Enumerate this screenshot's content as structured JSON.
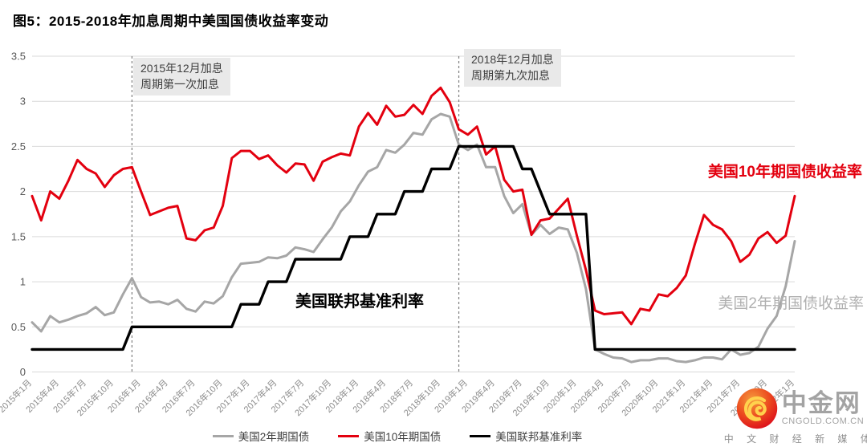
{
  "title": "图5：2015-2018年加息周期中美国国债收益率变动",
  "watermark": {
    "brand": "中金网",
    "domain": "CNGOLD.COM.CN",
    "tagline": "中文财经新媒体"
  },
  "chart_data": {
    "type": "line",
    "title": "图5：2015-2018年加息周期中美国国债收益率变动",
    "ylim": [
      0,
      3.5
    ],
    "y_ticks": [
      "0",
      "0.5",
      "1",
      "1.5",
      "2",
      "2.5",
      "3",
      "3.5"
    ],
    "grid": true,
    "months_per_tick": 3,
    "x_tick_labels": [
      "2015年1月",
      "2015年4月",
      "2015年7月",
      "2015年10月",
      "2016年1月",
      "2016年4月",
      "2016年7月",
      "2016年10月",
      "2017年1月",
      "2017年4月",
      "2017年7月",
      "2017年10月",
      "2018年1月",
      "2018年4月",
      "2018年7月",
      "2018年10月",
      "2019年1月",
      "2019年4月",
      "2019年7月",
      "2019年10月",
      "2020年1月",
      "2020年4月",
      "2020年7月",
      "2020年10月",
      "2021年1月",
      "2021年4月",
      "2021年7月",
      "2021年10月",
      "2022年1月"
    ],
    "series": [
      {
        "key": "us-2y-treasury",
        "name": "美国2年期国债",
        "color": "#a6a6a6",
        "width": 3,
        "values": [
          0.55,
          0.45,
          0.62,
          0.55,
          0.58,
          0.62,
          0.65,
          0.72,
          0.63,
          0.66,
          0.86,
          1.04,
          0.83,
          0.77,
          0.78,
          0.75,
          0.8,
          0.7,
          0.67,
          0.78,
          0.76,
          0.84,
          1.05,
          1.2,
          1.21,
          1.22,
          1.27,
          1.26,
          1.29,
          1.38,
          1.36,
          1.33,
          1.47,
          1.6,
          1.78,
          1.89,
          2.07,
          2.22,
          2.27,
          2.46,
          2.43,
          2.52,
          2.65,
          2.63,
          2.8,
          2.86,
          2.83,
          2.52,
          2.46,
          2.52,
          2.27,
          2.27,
          1.95,
          1.76,
          1.86,
          1.52,
          1.63,
          1.53,
          1.6,
          1.58,
          1.32,
          0.92,
          0.25,
          0.2,
          0.16,
          0.15,
          0.11,
          0.13,
          0.13,
          0.15,
          0.15,
          0.12,
          0.11,
          0.13,
          0.16,
          0.16,
          0.14,
          0.25,
          0.19,
          0.21,
          0.28,
          0.48,
          0.62,
          0.95,
          1.45
        ]
      },
      {
        "key": "us-10y-treasury",
        "name": "美国10年期国债",
        "color": "#e3000f",
        "width": 3,
        "values": [
          1.95,
          1.68,
          2.0,
          1.92,
          2.12,
          2.35,
          2.25,
          2.2,
          2.05,
          2.18,
          2.25,
          2.27,
          2.0,
          1.74,
          1.78,
          1.82,
          1.84,
          1.48,
          1.46,
          1.57,
          1.6,
          1.84,
          2.37,
          2.45,
          2.45,
          2.36,
          2.4,
          2.29,
          2.21,
          2.31,
          2.3,
          2.12,
          2.33,
          2.38,
          2.42,
          2.4,
          2.72,
          2.87,
          2.74,
          2.95,
          2.83,
          2.85,
          2.96,
          2.86,
          3.06,
          3.15,
          2.99,
          2.69,
          2.63,
          2.72,
          2.41,
          2.5,
          2.13,
          2.0,
          2.02,
          1.52,
          1.68,
          1.7,
          1.81,
          1.92,
          1.51,
          1.13,
          0.68,
          0.64,
          0.65,
          0.66,
          0.53,
          0.7,
          0.68,
          0.86,
          0.84,
          0.93,
          1.07,
          1.42,
          1.74,
          1.63,
          1.58,
          1.45,
          1.22,
          1.3,
          1.48,
          1.55,
          1.43,
          1.51,
          1.95
        ]
      },
      {
        "key": "us-fed-funds-rate",
        "name": "美国联邦基准利率",
        "color": "#000000",
        "width": 3.4,
        "values": [
          0.25,
          0.25,
          0.25,
          0.25,
          0.25,
          0.25,
          0.25,
          0.25,
          0.25,
          0.25,
          0.25,
          0.5,
          0.5,
          0.5,
          0.5,
          0.5,
          0.5,
          0.5,
          0.5,
          0.5,
          0.5,
          0.5,
          0.5,
          0.75,
          0.75,
          0.75,
          1.0,
          1.0,
          1.0,
          1.25,
          1.25,
          1.25,
          1.25,
          1.25,
          1.25,
          1.5,
          1.5,
          1.5,
          1.75,
          1.75,
          1.75,
          2.0,
          2.0,
          2.0,
          2.25,
          2.25,
          2.25,
          2.5,
          2.5,
          2.5,
          2.5,
          2.5,
          2.5,
          2.5,
          2.25,
          2.25,
          2.0,
          1.75,
          1.75,
          1.75,
          1.75,
          1.75,
          0.25,
          0.25,
          0.25,
          0.25,
          0.25,
          0.25,
          0.25,
          0.25,
          0.25,
          0.25,
          0.25,
          0.25,
          0.25,
          0.25,
          0.25,
          0.25,
          0.25,
          0.25,
          0.25,
          0.25,
          0.25,
          0.25,
          0.25
        ]
      }
    ],
    "annotations": [
      {
        "line1": "2015年12月加息",
        "line2": "周期第一次加息",
        "month_index": 11
      },
      {
        "line1": "2018年12月加息",
        "line2": "周期第九次加息",
        "month_index": 47
      }
    ],
    "inline_labels": [
      {
        "id": "10y",
        "text": "美国10年期国债收益率",
        "color": "#e3000f"
      },
      {
        "id": "fed",
        "text": "美国联邦基准利率",
        "color": "#000000"
      },
      {
        "id": "2y",
        "text": "美国2年期国债收益率",
        "color": "#b0b0b0"
      }
    ],
    "legend_position": "bottom-center",
    "colors": {
      "grid": "#d9d9d9",
      "y_tick_text": "#595959",
      "x_tick_text": "#8c8c8c",
      "dashed_marker": "#7f7f7f"
    }
  }
}
